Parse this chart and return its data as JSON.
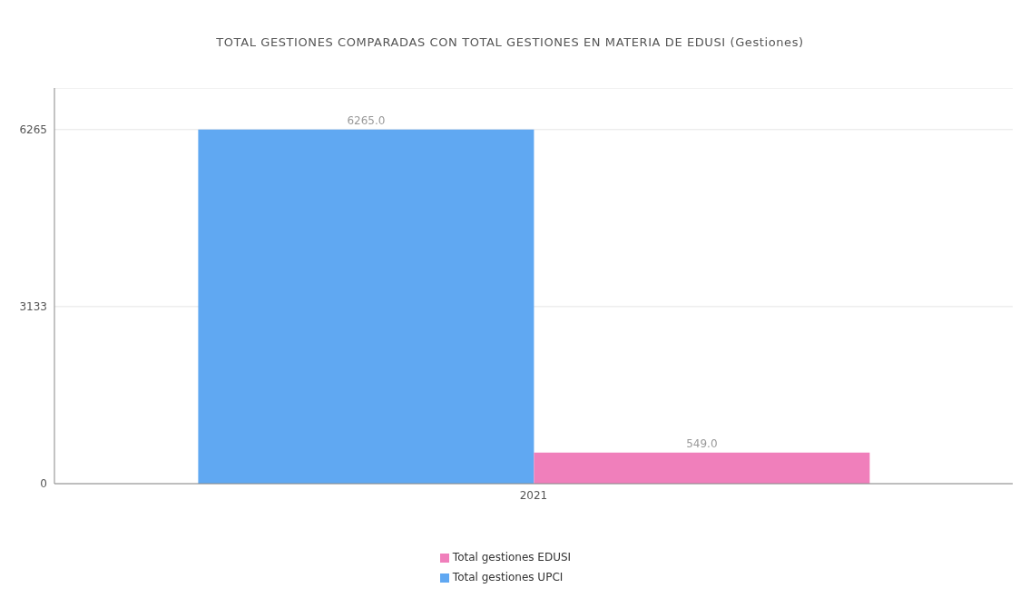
{
  "chart_data": {
    "type": "bar",
    "title": "TOTAL GESTIONES COMPARADAS CON TOTAL GESTIONES EN MATERIA DE EDUSI (Gestiones)",
    "categories": [
      "2021"
    ],
    "series": [
      {
        "name": "Total gestiones UPCI",
        "color": "#60a8f2",
        "values": [
          6265
        ],
        "value_labels": [
          "6265.0"
        ]
      },
      {
        "name": "Total gestiones EDUSI",
        "color": "#f07fbb",
        "values": [
          549
        ],
        "value_labels": [
          "549.0"
        ]
      }
    ],
    "ylim": [
      0,
      7000
    ],
    "yticks": [
      0,
      3133,
      6265
    ],
    "grid": "y",
    "legend": "bottom"
  }
}
